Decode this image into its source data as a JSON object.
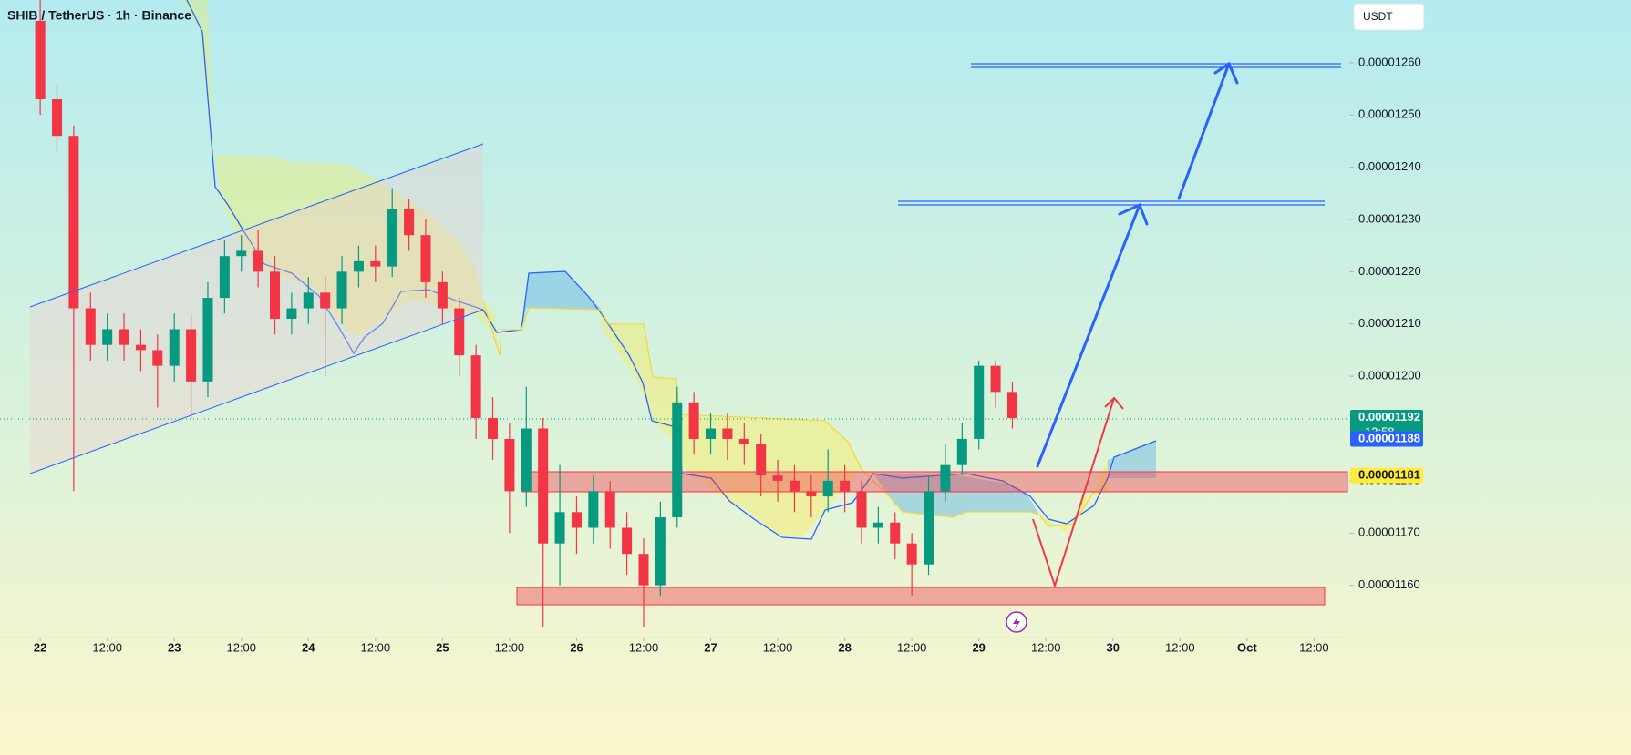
{
  "chart_data": {
    "type": "candlestick",
    "title": "SHIB / TetherUS · 1h · Binance",
    "currency": "USDT",
    "up_color": "#089981",
    "down_color": "#f23645",
    "xlim": [
      -7.2,
      234.3
    ],
    "ylim": [
      1.15e-05,
      1.272e-05
    ],
    "xticks": [
      {
        "value": 0,
        "label": "22"
      },
      {
        "value": 12,
        "label": "12:00"
      },
      {
        "value": 24,
        "label": "23"
      },
      {
        "value": 36,
        "label": "12:00"
      },
      {
        "value": 48,
        "label": "24"
      },
      {
        "value": 60,
        "label": "12:00"
      },
      {
        "value": 72,
        "label": "25"
      },
      {
        "value": 84,
        "label": "12:00"
      },
      {
        "value": 96,
        "label": "26"
      },
      {
        "value": 108,
        "label": "12:00"
      },
      {
        "value": 120,
        "label": "27"
      },
      {
        "value": 132,
        "label": "12:00"
      },
      {
        "value": 144,
        "label": "28"
      },
      {
        "value": 156,
        "label": "12:00"
      },
      {
        "value": 168,
        "label": "29"
      },
      {
        "value": 180,
        "label": "12:00"
      },
      {
        "value": 192,
        "label": "30"
      },
      {
        "value": 204,
        "label": "12:00"
      },
      {
        "value": 216,
        "label": "Oct"
      },
      {
        "value": 228,
        "label": "12:00"
      }
    ],
    "yticks": [
      {
        "value": 1.16e-05,
        "label": "0.00001160"
      },
      {
        "value": 1.17e-05,
        "label": "0.00001170"
      },
      {
        "value": 1.18e-05,
        "label": "0.00001180"
      },
      {
        "value": 1.19e-05,
        "label": "0.00001190"
      },
      {
        "value": 1.2e-05,
        "label": "0.00001200"
      },
      {
        "value": 1.21e-05,
        "label": "0.00001210"
      },
      {
        "value": 1.22e-05,
        "label": "0.00001220"
      },
      {
        "value": 1.23e-05,
        "label": "0.00001230"
      },
      {
        "value": 1.24e-05,
        "label": "0.00001240"
      },
      {
        "value": 1.25e-05,
        "label": "0.00001250"
      },
      {
        "value": 1.26e-05,
        "label": "0.00001260"
      }
    ],
    "x": [
      0,
      3,
      6,
      9,
      12,
      15,
      18,
      21,
      24,
      27,
      30,
      33,
      36,
      39,
      42,
      45,
      48,
      51,
      54,
      57,
      60,
      63,
      66,
      69,
      72,
      75,
      78,
      81,
      84,
      87,
      90,
      93,
      96,
      99,
      102,
      105,
      108,
      111,
      114,
      117,
      120,
      123,
      126,
      129,
      132,
      135,
      138,
      141,
      144,
      147,
      150,
      153,
      156,
      159,
      162,
      165,
      168,
      171,
      174
    ],
    "open": [
      1.268e-05,
      1.253e-05,
      1.246e-05,
      1.213e-05,
      1.206e-05,
      1.209e-05,
      1.206e-05,
      1.205e-05,
      1.202e-05,
      1.209e-05,
      1.199e-05,
      1.215e-05,
      1.223e-05,
      1.224e-05,
      1.22e-05,
      1.211e-05,
      1.213e-05,
      1.216e-05,
      1.213e-05,
      1.22e-05,
      1.222e-05,
      1.221e-05,
      1.232e-05,
      1.227e-05,
      1.218e-05,
      1.213e-05,
      1.204e-05,
      1.192e-05,
      1.188e-05,
      1.178e-05,
      1.19e-05,
      1.168e-05,
      1.174e-05,
      1.171e-05,
      1.178e-05,
      1.171e-05,
      1.166e-05,
      1.16e-05,
      1.173e-05,
      1.195e-05,
      1.188e-05,
      1.19e-05,
      1.188e-05,
      1.187e-05,
      1.181e-05,
      1.18e-05,
      1.178e-05,
      1.177e-05,
      1.18e-05,
      1.178e-05,
      1.171e-05,
      1.172e-05,
      1.168e-05,
      1.164e-05,
      1.178e-05,
      1.183e-05,
      1.188e-05,
      1.202e-05,
      1.197e-05
    ],
    "high": [
      1.272e-05,
      1.256e-05,
      1.248e-05,
      1.216e-05,
      1.212e-05,
      1.212e-05,
      1.209e-05,
      1.208e-05,
      1.212e-05,
      1.212e-05,
      1.218e-05,
      1.226e-05,
      1.227e-05,
      1.228e-05,
      1.223e-05,
      1.216e-05,
      1.219e-05,
      1.219e-05,
      1.223e-05,
      1.225e-05,
      1.225e-05,
      1.236e-05,
      1.234e-05,
      1.23e-05,
      1.22e-05,
      1.215e-05,
      1.206e-05,
      1.196e-05,
      1.191e-05,
      1.198e-05,
      1.192e-05,
      1.183e-05,
      1.177e-05,
      1.181e-05,
      1.18e-05,
      1.174e-05,
      1.169e-05,
      1.176e-05,
      1.198e-05,
      1.197e-05,
      1.193e-05,
      1.193e-05,
      1.191e-05,
      1.189e-05,
      1.184e-05,
      1.183e-05,
      1.181e-05,
      1.186e-05,
      1.183e-05,
      1.18e-05,
      1.175e-05,
      1.174e-05,
      1.17e-05,
      1.181e-05,
      1.187e-05,
      1.191e-05,
      1.203e-05,
      1.203e-05,
      1.199e-05
    ],
    "low": [
      1.25e-05,
      1.243e-05,
      1.178e-05,
      1.203e-05,
      1.203e-05,
      1.203e-05,
      1.201e-05,
      1.194e-05,
      1.199e-05,
      1.192e-05,
      1.196e-05,
      1.212e-05,
      1.22e-05,
      1.217e-05,
      1.208e-05,
      1.208e-05,
      1.21e-05,
      1.2e-05,
      1.21e-05,
      1.217e-05,
      1.218e-05,
      1.219e-05,
      1.224e-05,
      1.215e-05,
      1.21e-05,
      1.2e-05,
      1.188e-05,
      1.184e-05,
      1.17e-05,
      1.175e-05,
      1.152e-05,
      1.16e-05,
      1.166e-05,
      1.168e-05,
      1.167e-05,
      1.162e-05,
      1.152e-05,
      1.158e-05,
      1.171e-05,
      1.185e-05,
      1.185e-05,
      1.184e-05,
      1.183e-05,
      1.177e-05,
      1.176e-05,
      1.174e-05,
      1.173e-05,
      1.174e-05,
      1.174e-05,
      1.168e-05,
      1.168e-05,
      1.165e-05,
      1.158e-05,
      1.162e-05,
      1.176e-05,
      1.181e-05,
      1.186e-05,
      1.194e-05,
      1.19e-05
    ],
    "close": [
      1.253e-05,
      1.246e-05,
      1.213e-05,
      1.206e-05,
      1.209e-05,
      1.206e-05,
      1.205e-05,
      1.202e-05,
      1.209e-05,
      1.199e-05,
      1.215e-05,
      1.223e-05,
      1.224e-05,
      1.22e-05,
      1.211e-05,
      1.213e-05,
      1.216e-05,
      1.213e-05,
      1.22e-05,
      1.222e-05,
      1.221e-05,
      1.232e-05,
      1.227e-05,
      1.218e-05,
      1.213e-05,
      1.204e-05,
      1.192e-05,
      1.188e-05,
      1.178e-05,
      1.19e-05,
      1.168e-05,
      1.174e-05,
      1.171e-05,
      1.178e-05,
      1.171e-05,
      1.166e-05,
      1.16e-05,
      1.173e-05,
      1.195e-05,
      1.188e-05,
      1.19e-05,
      1.188e-05,
      1.187e-05,
      1.181e-05,
      1.18e-05,
      1.178e-05,
      1.177e-05,
      1.18e-05,
      1.178e-05,
      1.171e-05,
      1.172e-05,
      1.168e-05,
      1.164e-05,
      1.178e-05,
      1.183e-05,
      1.188e-05,
      1.202e-05,
      1.197e-05,
      1.192e-05
    ],
    "price_labels": [
      {
        "value": 1.192e-05,
        "label": "0.00001192",
        "color": "#089981",
        "text_color": "#ffffff"
      },
      {
        "value": 1.188e-05,
        "label": "0.00001188",
        "color": "#2962ff",
        "text_color": "#ffffff"
      },
      {
        "value": 1.181e-05,
        "label": "0.00001181",
        "color": "#ffeb3b",
        "text_color": "#131722"
      }
    ],
    "countdown": "13:58"
  }
}
